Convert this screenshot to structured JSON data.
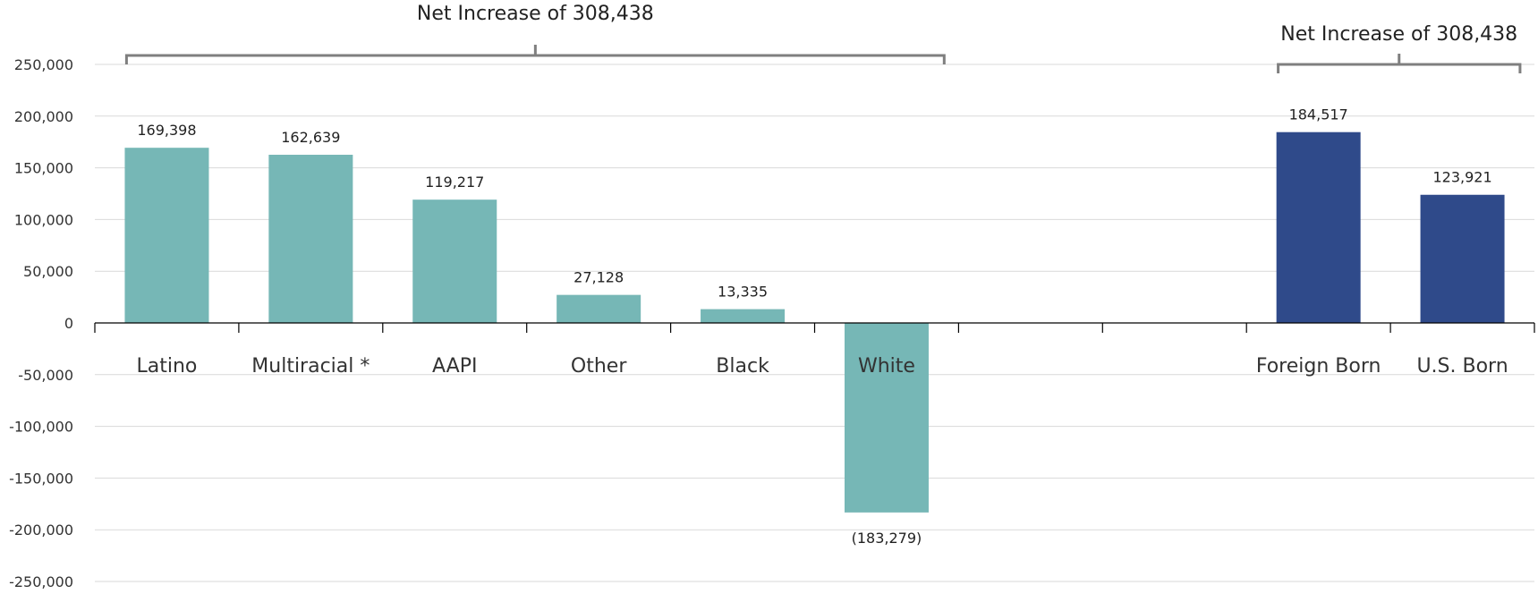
{
  "chart_data": {
    "type": "bar",
    "categories": [
      "Latino",
      "Multiracial *",
      "AAPI",
      "Other",
      "Black",
      "White",
      "",
      "",
      "Foreign Born",
      "U.S. Born"
    ],
    "values": [
      169398,
      162639,
      119217,
      27128,
      13335,
      -183279,
      null,
      null,
      184517,
      123921
    ],
    "data_labels": [
      "169,398",
      "162,639",
      "119,217",
      "27,128",
      "13,335",
      "(183,279)",
      "",
      "",
      "184,517",
      "123,921"
    ],
    "colors": [
      "#76b7b6",
      "#76b7b6",
      "#76b7b6",
      "#76b7b6",
      "#76b7b6",
      "#76b7b6",
      "",
      "",
      "#2f4a8a",
      "#2f4a8a"
    ],
    "ylim": [
      -250000,
      250000
    ],
    "yticks": [
      250000,
      200000,
      150000,
      100000,
      50000,
      0,
      -50000,
      -100000,
      -150000,
      -200000,
      -250000
    ],
    "ytick_labels": [
      "250,000",
      "200,000",
      "150,000",
      "100,000",
      "50,000",
      "0",
      "-50,000",
      "-100,000",
      "-150,000",
      "-200,000",
      "-250,000"
    ],
    "grid": true,
    "title": "",
    "xlabel": "",
    "ylabel": "",
    "annotations": [
      {
        "text": "Net Increase of 308,438",
        "spans": [
          "Latino",
          "White"
        ]
      },
      {
        "text": "Net Increase of 308,438",
        "spans": [
          "Foreign Born",
          "U.S. Born"
        ]
      }
    ]
  }
}
